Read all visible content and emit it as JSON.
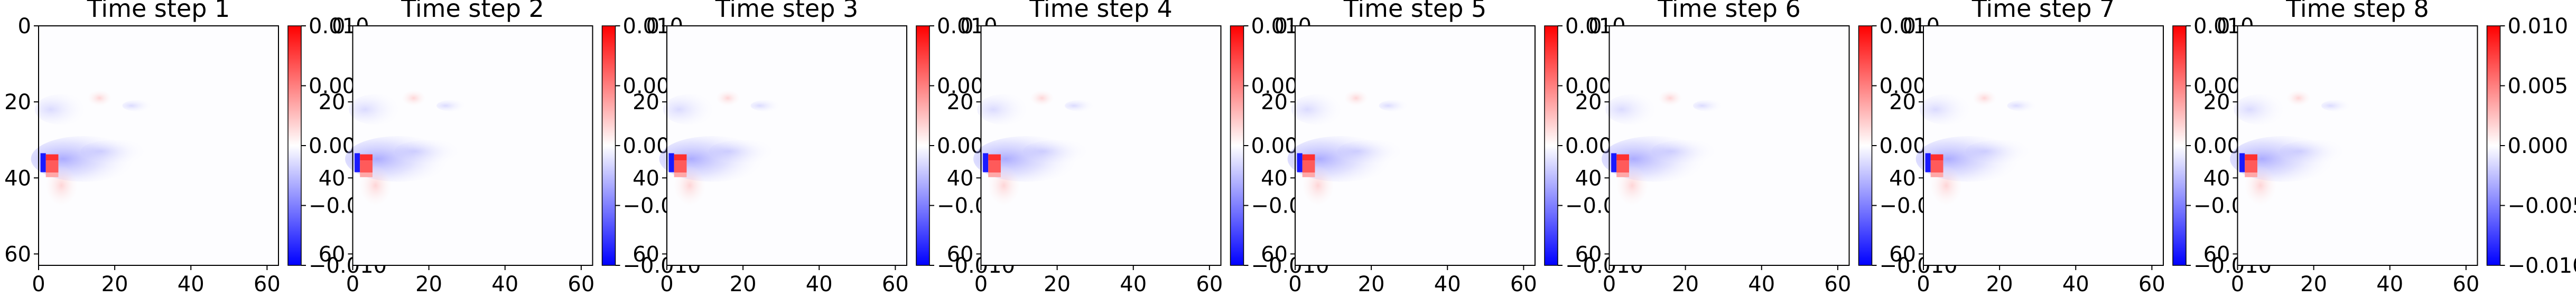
{
  "colorbar_ticks": [
    "0.010",
    "0.005",
    "0.000",
    "−0.005",
    "−0.010"
  ],
  "axis_ticks": {
    "x": [
      "0",
      "20",
      "40",
      "60"
    ],
    "y": [
      "0",
      "20",
      "40",
      "60"
    ]
  },
  "colormap": {
    "low": "#0000ff",
    "mid": "#ffffff",
    "high": "#ff0000"
  },
  "chart_data": [
    {
      "type": "heatmap",
      "title": "Time step 1",
      "xlim": [
        0,
        63
      ],
      "ylim": [
        63,
        0
      ],
      "clim": [
        -0.01,
        0.01
      ]
    },
    {
      "type": "heatmap",
      "title": "Time step 2",
      "xlim": [
        0,
        63
      ],
      "ylim": [
        63,
        0
      ],
      "clim": [
        -0.01,
        0.01
      ]
    },
    {
      "type": "heatmap",
      "title": "Time step 3",
      "xlim": [
        0,
        63
      ],
      "ylim": [
        63,
        0
      ],
      "clim": [
        -0.01,
        0.01
      ]
    },
    {
      "type": "heatmap",
      "title": "Time step 4",
      "xlim": [
        0,
        63
      ],
      "ylim": [
        63,
        0
      ],
      "clim": [
        -0.01,
        0.01
      ]
    },
    {
      "type": "heatmap",
      "title": "Time step 5",
      "xlim": [
        0,
        63
      ],
      "ylim": [
        63,
        0
      ],
      "clim": [
        -0.01,
        0.01
      ]
    },
    {
      "type": "heatmap",
      "title": "Time step 6",
      "xlim": [
        0,
        63
      ],
      "ylim": [
        63,
        0
      ],
      "clim": [
        -0.01,
        0.01
      ]
    },
    {
      "type": "heatmap",
      "title": "Time step 7",
      "xlim": [
        0,
        63
      ],
      "ylim": [
        63,
        0
      ],
      "clim": [
        -0.01,
        0.01
      ]
    },
    {
      "type": "heatmap",
      "title": "Time step 8",
      "xlim": [
        0,
        63
      ],
      "ylim": [
        63,
        0
      ],
      "clim": [
        -0.01,
        0.01
      ]
    }
  ]
}
